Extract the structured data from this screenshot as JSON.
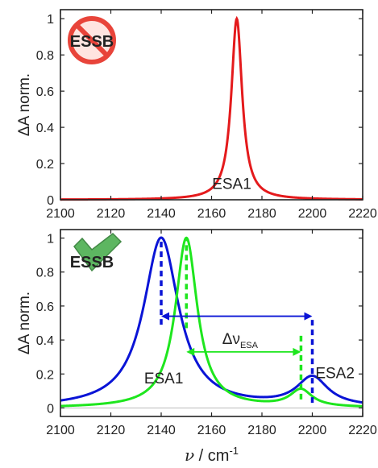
{
  "chart_data": [
    {
      "type": "line",
      "id": "top",
      "xlim": [
        2100,
        2220
      ],
      "ylim": [
        0,
        1.05
      ],
      "xticks": [
        2100,
        2120,
        2140,
        2160,
        2180,
        2200,
        2220
      ],
      "yticks": [
        0,
        0.2,
        0.4,
        0.6,
        0.8,
        1
      ],
      "ytick_labels": [
        "0",
        "0.2",
        "0.4",
        "0.6",
        "0.8",
        "1"
      ],
      "ylabel": "ΔA norm.",
      "badge": {
        "text": "ESSB",
        "icon": "prohibited-icon",
        "color": "#e8443a"
      },
      "series": [
        {
          "color": "#e41a1c",
          "peaks": [
            {
              "center": 2170,
              "hwhm": 2.6,
              "amp": 1.0
            }
          ]
        }
      ],
      "annotations": [
        {
          "text": "ESA1",
          "x": 2168,
          "y": 0.06
        }
      ]
    },
    {
      "type": "line",
      "id": "bottom",
      "xlim": [
        2100,
        2220
      ],
      "ylim": [
        -0.05,
        1.05
      ],
      "xticks": [
        2100,
        2120,
        2140,
        2160,
        2180,
        2200,
        2220
      ],
      "yticks": [
        0,
        0.2,
        0.4,
        0.6,
        0.8,
        1
      ],
      "ytick_labels": [
        "0",
        "0.2",
        "0.4",
        "0.6",
        "0.8",
        "1"
      ],
      "ylabel": "ΔA norm.",
      "xlabel_main": "ν",
      "xlabel_rest": " / cm",
      "xlabel_sup": "-1",
      "badge": {
        "text": "ESSB",
        "icon": "checkmark-icon",
        "color": "#4caf50"
      },
      "series": [
        {
          "color": "#0a14d6",
          "peaks": [
            {
              "center": 2140,
              "hwhm": 8.5,
              "amp": 1.0
            },
            {
              "center": 2200,
              "hwhm": 7.5,
              "amp": 0.17
            }
          ]
        },
        {
          "color": "#1ee61e",
          "peaks": [
            {
              "center": 2150,
              "hwhm": 5.3,
              "amp": 1.0
            },
            {
              "center": 2195.5,
              "hwhm": 5.3,
              "amp": 0.1
            }
          ]
        }
      ],
      "markers": [
        {
          "color": "#0a14d6",
          "x": 2140,
          "y1": 0.49,
          "y2": 1.0
        },
        {
          "color": "#0a14d6",
          "x": 2200,
          "y1": 0.03,
          "y2": 0.54
        },
        {
          "color": "#1ee61e",
          "x": 2150,
          "y1": 0.47,
          "y2": 1.0
        },
        {
          "color": "#1ee61e",
          "x": 2195.5,
          "y1": 0.05,
          "y2": 0.43
        }
      ],
      "arrows": [
        {
          "color": "#0a14d6",
          "x1": 2140,
          "x2": 2200,
          "y": 0.54
        },
        {
          "color": "#1ee61e",
          "x1": 2150,
          "x2": 2195.5,
          "y": 0.33
        }
      ],
      "delta_label": {
        "main": "Δν",
        "sub": "ESA",
        "x": 2170,
        "y": 0.405
      },
      "annotations": [
        {
          "text": "ESA1",
          "x": 2141,
          "y": 0.145
        },
        {
          "text": "ESA2",
          "x": 2209,
          "y": 0.175
        }
      ]
    }
  ]
}
